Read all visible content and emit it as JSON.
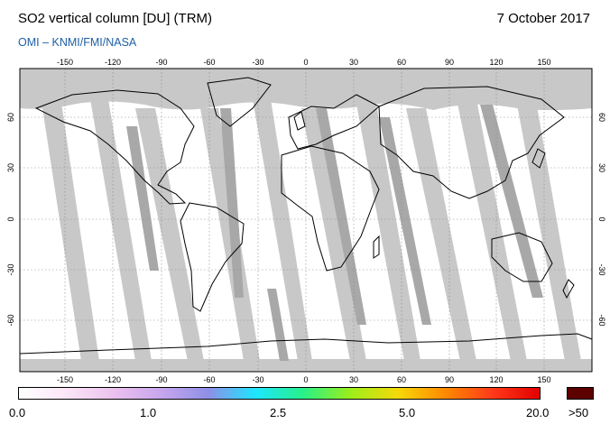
{
  "header": {
    "title": "SO2 vertical column [DU] (TRM)",
    "date": "7 October 2017",
    "credit": "OMI  –  KNMI/FMI/NASA"
  },
  "map": {
    "lon_ticks": [
      -150,
      -120,
      -90,
      -60,
      -30,
      0,
      30,
      60,
      90,
      120,
      150
    ],
    "lat_ticks": [
      60,
      30,
      0,
      -30,
      -60
    ],
    "colors": {
      "missing": "#c8c8c8",
      "overlap": "#a8a8a8",
      "background": "#ffffff",
      "coast": "#000000",
      "grid": "#888888"
    }
  },
  "colorbar": {
    "labels": [
      "0.0",
      "1.0",
      "2.5",
      "5.0",
      "20.0"
    ],
    "over_label": ">50",
    "stops": [
      "#ffffff",
      "#fbe6f7",
      "#ecc1ee",
      "#c7a6ee",
      "#8f8fe6",
      "#1ee6ff",
      "#27f08a",
      "#9bef1b",
      "#f5d90a",
      "#ff8a00",
      "#ff3a1a",
      "#e20000"
    ],
    "over_color": "#5c0000"
  }
}
